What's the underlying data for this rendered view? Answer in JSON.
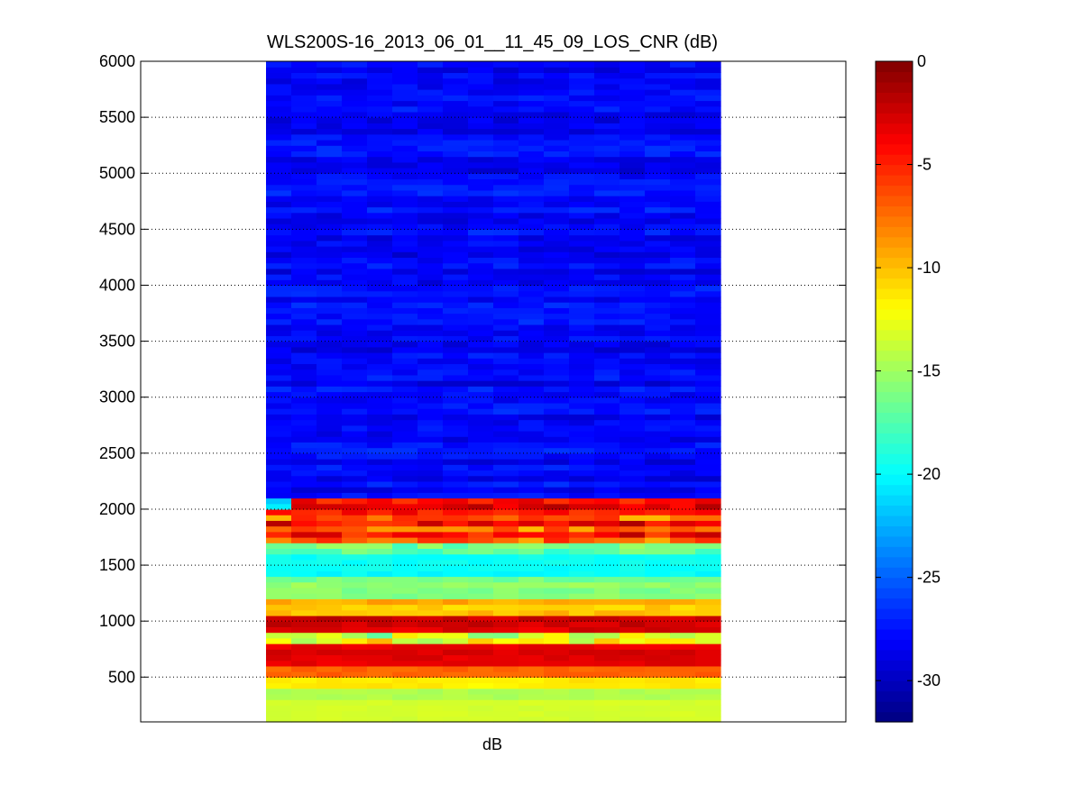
{
  "chart_data": {
    "type": "heatmap",
    "title": "WLS200S-16_2013_06_01__11_45_09_LOS_CNR (dB)",
    "xlabel": "dB",
    "ylabel": "",
    "ylim": [
      100,
      6000
    ],
    "yticks": [
      500,
      1000,
      1500,
      2000,
      2500,
      3000,
      3500,
      4000,
      4500,
      5000,
      5500,
      6000
    ],
    "grid": "horizontal-dotted",
    "n_columns": 18,
    "row_height": 50,
    "colormap": "jet",
    "colorbar": {
      "clim": [
        -32,
        0
      ],
      "ticks": [
        0,
        -5,
        -10,
        -15,
        -20,
        -25,
        -30
      ],
      "placement": "right"
    },
    "profile": [
      {
        "range": [
          100,
          300
        ],
        "value": -13.5,
        "variation": 0.5
      },
      {
        "range": [
          300,
          400
        ],
        "value": -14.5,
        "variation": 0.8
      },
      {
        "range": [
          400,
          500
        ],
        "value": -11.0,
        "variation": 1.0
      },
      {
        "range": [
          500,
          600
        ],
        "value": -7.0,
        "variation": 1.0
      },
      {
        "range": [
          600,
          800
        ],
        "value": -3.0,
        "variation": 1.0
      },
      {
        "range": [
          800,
          900
        ],
        "value": -12.0,
        "variation": 6.0
      },
      {
        "range": [
          900,
          1050
        ],
        "value": -3.0,
        "variation": 1.5
      },
      {
        "range": [
          1050,
          1200
        ],
        "value": -10.0,
        "variation": 1.5
      },
      {
        "range": [
          1200,
          1400
        ],
        "value": -16.0,
        "variation": 1.5
      },
      {
        "range": [
          1400,
          1600
        ],
        "value": -20.0,
        "variation": 1.0
      },
      {
        "range": [
          1600,
          1700
        ],
        "value": -17.0,
        "variation": 3.0
      },
      {
        "range": [
          1700,
          1950
        ],
        "value": -6.0,
        "variation": 5.0
      },
      {
        "range": [
          1950,
          2100
        ],
        "value": -3.0,
        "variation": 3.0
      },
      {
        "range": [
          2100,
          6000
        ],
        "value": -28.0,
        "variation": 1.8
      }
    ]
  }
}
